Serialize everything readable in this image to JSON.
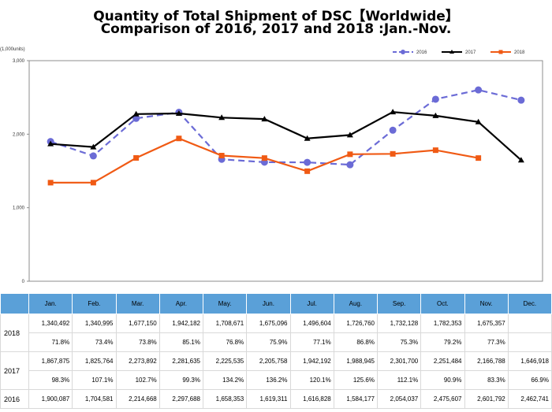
{
  "title_line1": "Quantity of Total Shipment of DSC【Worldwide】",
  "title_line2": "Comparison of 2016, 2017 and 2018 :Jan.-Nov.",
  "units_label": "(1,000units)",
  "chart_data": {
    "type": "line",
    "categories": [
      "Jan.",
      "Feb.",
      "Mar.",
      "Apr.",
      "May.",
      "Jun.",
      "Jul.",
      "Aug.",
      "Sep.",
      "Oct.",
      "Nov.",
      "Dec."
    ],
    "ylim": [
      0,
      3000
    ],
    "yticks": [
      "0",
      "1,000",
      "2,000",
      "3,000"
    ],
    "grid": false,
    "legend_position": "top-right",
    "series": [
      {
        "name": "2016",
        "color": "#6b6bd6",
        "style": "dashed-circle",
        "values": [
          1900.087,
          1704.581,
          2214.668,
          2297.688,
          1658.353,
          1619.311,
          1616.828,
          1584.177,
          2054.037,
          2475.607,
          2601.792,
          2462.741
        ]
      },
      {
        "name": "2017",
        "color": "#000000",
        "style": "solid-triangle",
        "values": [
          1867.875,
          1825.764,
          2273.892,
          2281.635,
          2225.535,
          2205.758,
          1942.192,
          1988.945,
          2301.7,
          2251.484,
          2166.788,
          1646.918
        ]
      },
      {
        "name": "2018",
        "color": "#f05a14",
        "style": "solid-square",
        "values": [
          1340.492,
          1340.995,
          1677.15,
          1942.182,
          1708.671,
          1675.096,
          1496.604,
          1726.76,
          1732.128,
          1782.353,
          1675.357,
          null
        ]
      }
    ]
  },
  "table": {
    "months": [
      "Jan.",
      "Feb.",
      "Mar.",
      "Apr.",
      "May.",
      "Jun.",
      "Jul.",
      "Aug.",
      "Sep.",
      "Oct.",
      "Nov.",
      "Dec."
    ],
    "rows": [
      {
        "year": "2018",
        "values": [
          "1,340,492",
          "1,340,995",
          "1,677,150",
          "1,942,182",
          "1,708,671",
          "1,675,096",
          "1,496,604",
          "1,726,760",
          "1,732,128",
          "1,782,353",
          "1,675,357",
          ""
        ],
        "percents": [
          "71.8%",
          "73.4%",
          "73.8%",
          "85.1%",
          "76.8%",
          "75.9%",
          "77.1%",
          "86.8%",
          "75.3%",
          "79.2%",
          "77.3%",
          ""
        ]
      },
      {
        "year": "2017",
        "values": [
          "1,867,875",
          "1,825,764",
          "2,273,892",
          "2,281,635",
          "2,225,535",
          "2,205,758",
          "1,942,192",
          "1,988,945",
          "2,301,700",
          "2,251,484",
          "2,166,788",
          "1,646,918"
        ],
        "percents": [
          "98.3%",
          "107.1%",
          "102.7%",
          "99.3%",
          "134.2%",
          "136.2%",
          "120.1%",
          "125.6%",
          "112.1%",
          "90.9%",
          "83.3%",
          "66.9%"
        ]
      },
      {
        "year": "2016",
        "values": [
          "1,900,087",
          "1,704,581",
          "2,214,668",
          "2,297,688",
          "1,658,353",
          "1,619,311",
          "1,616,828",
          "1,584,177",
          "2,054,037",
          "2,475,607",
          "2,601,792",
          "2,462,741"
        ],
        "percents": []
      }
    ]
  }
}
